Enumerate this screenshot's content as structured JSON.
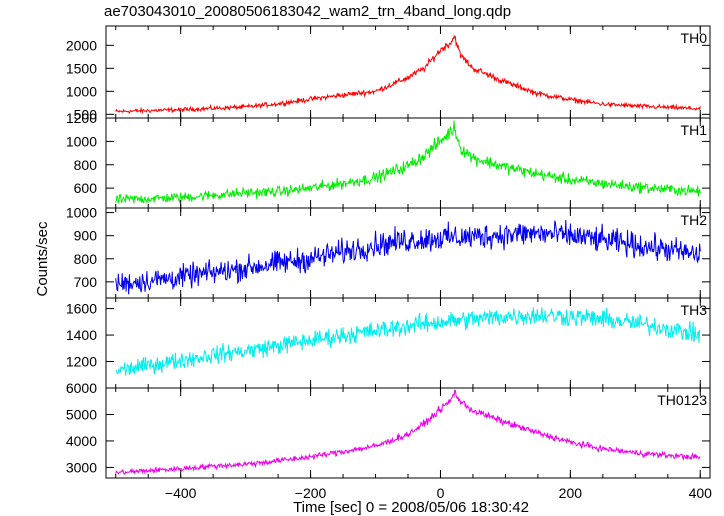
{
  "chart_data": {
    "type": "line",
    "title": "ae703043010_20080506183042_wam2_trn_4band_long.qdp",
    "xlabel": "Time [sec] 0 = 2008/05/06 18:30:42",
    "ylabel": "Counts/sec",
    "xlim": [
      -515,
      415
    ],
    "xticks": [
      -400,
      -200,
      0,
      200,
      400
    ],
    "xtick_labels": [
      "−400",
      "−200",
      "0",
      "200",
      "400"
    ],
    "grid": false,
    "panels": [
      {
        "name": "TH0",
        "color": "#ff0000",
        "ylim": [
          420,
          2420
        ],
        "yticks": [
          500,
          1000,
          1500,
          2000
        ],
        "x": [
          -500,
          -450,
          -400,
          -350,
          -300,
          -250,
          -200,
          -150,
          -100,
          -50,
          -25,
          0,
          15,
          22,
          30,
          50,
          100,
          150,
          200,
          250,
          300,
          350,
          400
        ],
        "y": [
          560,
          580,
          600,
          630,
          660,
          730,
          830,
          920,
          1000,
          1300,
          1500,
          1900,
          2050,
          2200,
          1800,
          1500,
          1200,
          950,
          820,
          720,
          680,
          650,
          620
        ]
      },
      {
        "name": "TH1",
        "color": "#00ee00",
        "ylim": [
          430,
          1200
        ],
        "yticks": [
          600,
          800,
          1000,
          1200
        ],
        "x": [
          -500,
          -450,
          -400,
          -350,
          -300,
          -250,
          -200,
          -150,
          -100,
          -50,
          -25,
          0,
          15,
          22,
          30,
          50,
          100,
          150,
          200,
          250,
          300,
          350,
          400
        ],
        "y": [
          500,
          510,
          520,
          540,
          560,
          570,
          600,
          640,
          690,
          790,
          880,
          1000,
          1080,
          1120,
          950,
          860,
          780,
          720,
          670,
          640,
          610,
          590,
          570
        ]
      },
      {
        "name": "TH2",
        "color": "#0000ee",
        "ylim": [
          630,
          1020
        ],
        "yticks": [
          700,
          800,
          900,
          1000
        ],
        "x": [
          -500,
          -450,
          -400,
          -350,
          -300,
          -250,
          -200,
          -150,
          -100,
          -50,
          0,
          50,
          100,
          150,
          200,
          250,
          300,
          350,
          400
        ],
        "y": [
          690,
          705,
          720,
          740,
          760,
          780,
          800,
          830,
          860,
          880,
          890,
          895,
          905,
          910,
          900,
          880,
          860,
          840,
          815
        ]
      },
      {
        "name": "TH3",
        "color": "#00eeee",
        "ylim": [
          1000,
          1680
        ],
        "yticks": [
          1200,
          1400,
          1600
        ],
        "x": [
          -500,
          -450,
          -400,
          -350,
          -300,
          -250,
          -200,
          -150,
          -100,
          -50,
          0,
          50,
          100,
          150,
          200,
          250,
          300,
          350,
          400
        ],
        "y": [
          1130,
          1170,
          1210,
          1250,
          1280,
          1320,
          1360,
          1400,
          1430,
          1470,
          1500,
          1520,
          1540,
          1550,
          1540,
          1520,
          1490,
          1450,
          1400
        ]
      },
      {
        "name": "TH0123",
        "color": "#ee00ee",
        "ylim": [
          2600,
          6000
        ],
        "yticks": [
          3000,
          4000,
          5000,
          6000
        ],
        "x": [
          -500,
          -450,
          -400,
          -350,
          -300,
          -250,
          -200,
          -150,
          -100,
          -50,
          -25,
          0,
          15,
          22,
          30,
          50,
          100,
          150,
          200,
          250,
          300,
          350,
          400
        ],
        "y": [
          2800,
          2880,
          2950,
          3050,
          3120,
          3250,
          3400,
          3600,
          3800,
          4250,
          4650,
          5200,
          5500,
          5850,
          5500,
          5150,
          4700,
          4300,
          3950,
          3700,
          3550,
          3450,
          3380
        ]
      }
    ]
  }
}
